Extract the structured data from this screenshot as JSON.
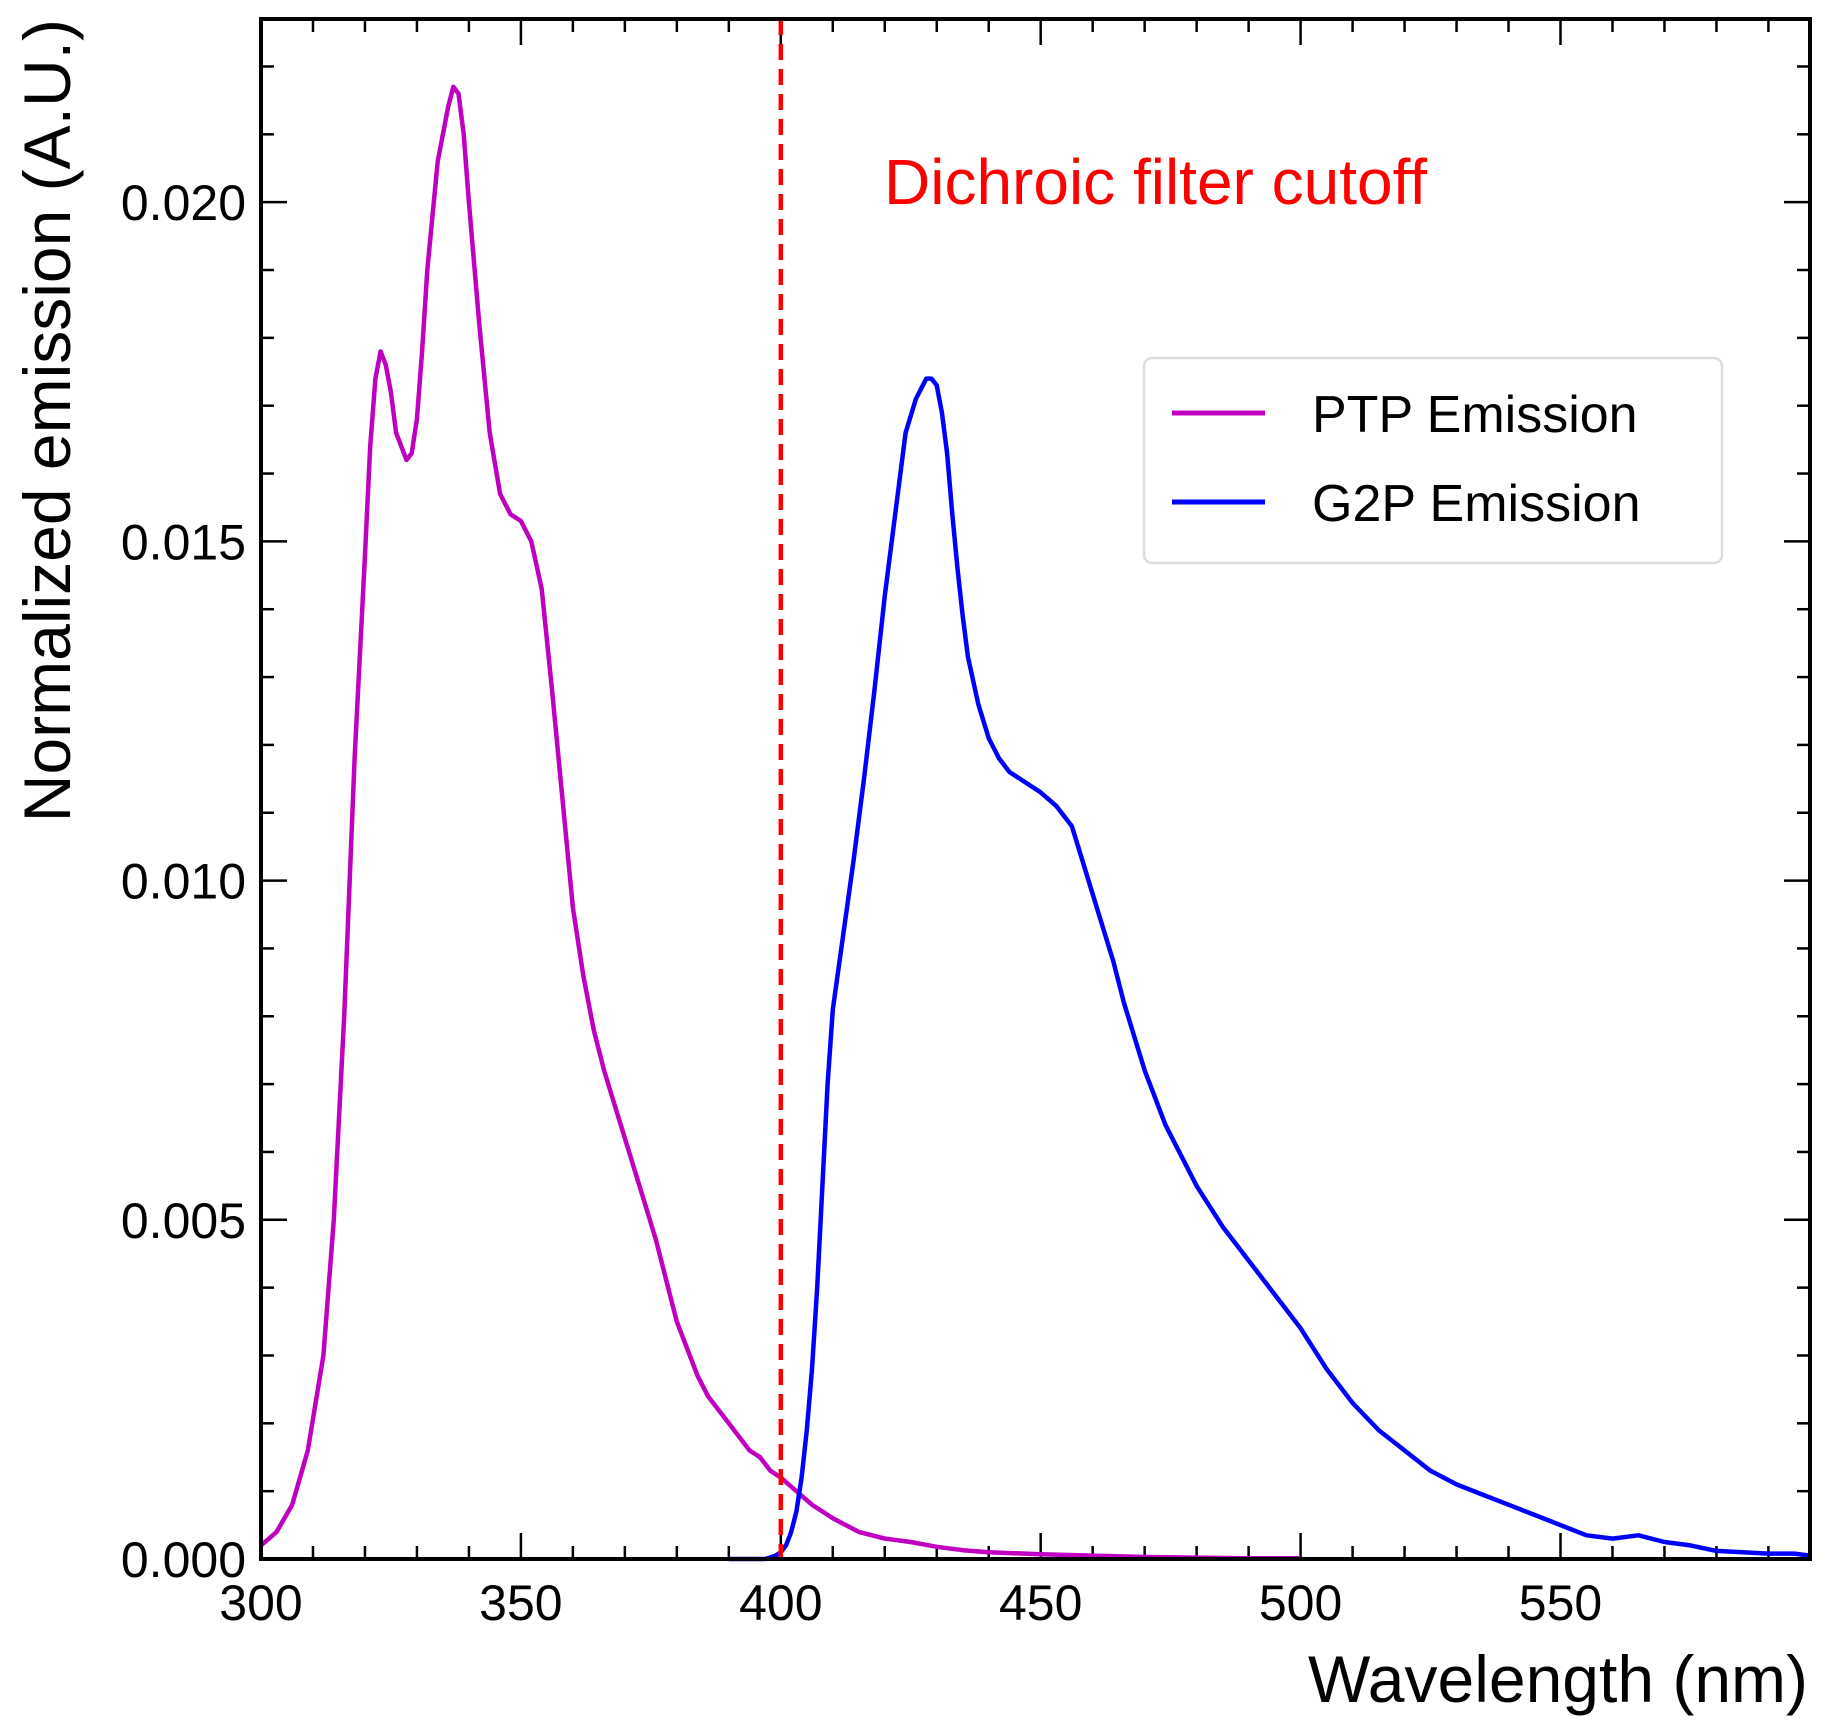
{
  "chart_data": {
    "type": "line",
    "title": "",
    "xlabel": "Wavelength (nm)",
    "ylabel": "Normalized emission (A.U.)",
    "xlim": [
      300,
      598
    ],
    "ylim": [
      0,
      0.0227
    ],
    "xticks": [
      300,
      350,
      400,
      450,
      500,
      550
    ],
    "xtick_labels": [
      "300",
      "350",
      "400",
      "450",
      "500",
      "550"
    ],
    "yticks": [
      0,
      0.005,
      0.01,
      0.015,
      0.02
    ],
    "ytick_labels": [
      "0.000",
      "0.005",
      "0.010",
      "0.015",
      "0.020"
    ],
    "grid": false,
    "legend_position": "upper-right",
    "series": [
      {
        "name": "PTP Emission",
        "color": "#c000c0",
        "x": [
          300,
          303,
          306,
          309,
          312,
          314,
          316,
          318,
          320,
          321,
          322,
          323,
          324,
          325,
          326,
          328,
          329,
          330,
          331,
          332,
          334,
          336,
          337,
          338,
          339,
          340,
          342,
          344,
          346,
          348,
          350,
          352,
          354,
          356,
          358,
          360,
          362,
          364,
          366,
          368,
          370,
          372,
          374,
          376,
          378,
          380,
          382,
          384,
          386,
          388,
          390,
          392,
          394,
          396,
          398,
          400,
          403,
          406,
          410,
          415,
          420,
          425,
          430,
          435,
          440,
          450,
          460,
          470,
          480,
          490,
          500
        ],
        "values": [
          0.0002,
          0.0004,
          0.0008,
          0.0016,
          0.003,
          0.005,
          0.008,
          0.0118,
          0.0148,
          0.0164,
          0.0174,
          0.0178,
          0.0176,
          0.0172,
          0.0166,
          0.0162,
          0.0163,
          0.0168,
          0.0178,
          0.019,
          0.0206,
          0.0214,
          0.0217,
          0.0216,
          0.021,
          0.02,
          0.0182,
          0.0166,
          0.0157,
          0.0154,
          0.0153,
          0.015,
          0.0143,
          0.0128,
          0.0112,
          0.0096,
          0.0086,
          0.0078,
          0.0072,
          0.0067,
          0.0062,
          0.0057,
          0.0052,
          0.0047,
          0.0041,
          0.0035,
          0.0031,
          0.0027,
          0.0024,
          0.0022,
          0.002,
          0.0018,
          0.0016,
          0.0015,
          0.0013,
          0.0012,
          0.001,
          0.0008,
          0.0006,
          0.0004,
          0.0003,
          0.00025,
          0.00018,
          0.00013,
          0.0001,
          7e-05,
          5e-05,
          3e-05,
          2e-05,
          1e-05,
          1e-05
        ]
      },
      {
        "name": "G2P Emission",
        "color": "#0000ff",
        "x": [
          390,
          394,
          397,
          399,
          400,
          401,
          402,
          403,
          404,
          405,
          406,
          407,
          408,
          409,
          410,
          412,
          414,
          416,
          418,
          420,
          422,
          424,
          426,
          428,
          429,
          430,
          431,
          432,
          433,
          434,
          435,
          436,
          438,
          440,
          442,
          444,
          446,
          448,
          450,
          453,
          456,
          458,
          460,
          462,
          464,
          466,
          468,
          470,
          472,
          474,
          476,
          478,
          480,
          485,
          490,
          495,
          500,
          505,
          510,
          515,
          520,
          525,
          530,
          535,
          540,
          545,
          550,
          555,
          560,
          565,
          570,
          575,
          580,
          585,
          590,
          595,
          598
        ],
        "values": [
          0.0,
          0.0,
          0.0,
          5e-05,
          0.0001,
          0.0002,
          0.0004,
          0.0007,
          0.0012,
          0.0019,
          0.0028,
          0.004,
          0.0055,
          0.007,
          0.0081,
          0.0092,
          0.0103,
          0.0115,
          0.0128,
          0.0142,
          0.0154,
          0.0166,
          0.0171,
          0.0174,
          0.0174,
          0.0173,
          0.0169,
          0.0163,
          0.0154,
          0.0146,
          0.0139,
          0.0133,
          0.0126,
          0.0121,
          0.0118,
          0.0116,
          0.0115,
          0.0114,
          0.0113,
          0.0111,
          0.0108,
          0.0103,
          0.0098,
          0.0093,
          0.0088,
          0.0082,
          0.0077,
          0.0072,
          0.0068,
          0.0064,
          0.0061,
          0.0058,
          0.0055,
          0.0049,
          0.0044,
          0.0039,
          0.0034,
          0.0028,
          0.0023,
          0.0019,
          0.0016,
          0.0013,
          0.0011,
          0.00095,
          0.0008,
          0.00065,
          0.0005,
          0.00035,
          0.0003,
          0.00035,
          0.00025,
          0.0002,
          0.00012,
          0.0001,
          8e-05,
          8e-05,
          5e-05
        ]
      }
    ],
    "cutoff": {
      "x": 400,
      "color": "#ff0000",
      "label": "Dichroic filter cutoff"
    }
  }
}
